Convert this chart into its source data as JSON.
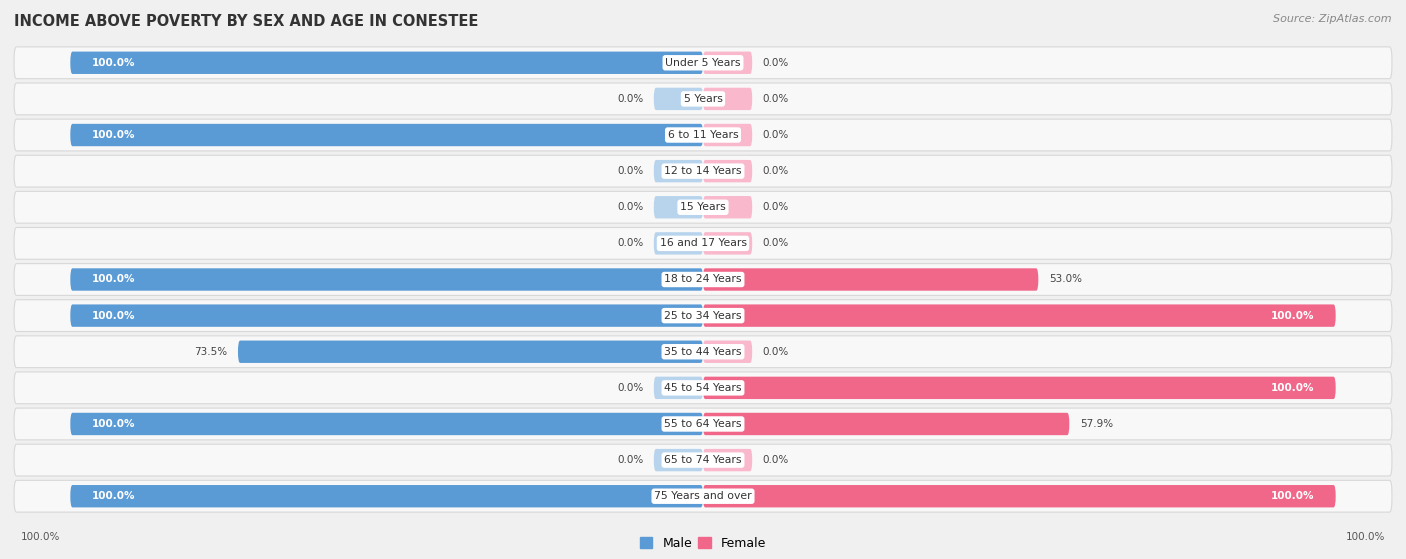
{
  "title": "INCOME ABOVE POVERTY BY SEX AND AGE IN CONESTEE",
  "source": "Source: ZipAtlas.com",
  "categories": [
    "Under 5 Years",
    "5 Years",
    "6 to 11 Years",
    "12 to 14 Years",
    "15 Years",
    "16 and 17 Years",
    "18 to 24 Years",
    "25 to 34 Years",
    "35 to 44 Years",
    "45 to 54 Years",
    "55 to 64 Years",
    "65 to 74 Years",
    "75 Years and over"
  ],
  "male": [
    100.0,
    0.0,
    100.0,
    0.0,
    0.0,
    0.0,
    100.0,
    100.0,
    73.5,
    0.0,
    100.0,
    0.0,
    100.0
  ],
  "female": [
    0.0,
    0.0,
    0.0,
    0.0,
    0.0,
    0.0,
    53.0,
    100.0,
    0.0,
    100.0,
    57.9,
    0.0,
    100.0
  ],
  "male_color": "#5b9bd5",
  "female_color": "#f0678a",
  "male_color_light": "#b8d4ed",
  "female_color_light": "#f9b8cb",
  "bg_color": "#f0f0f0",
  "row_bg": "#f8f8f8",
  "row_border": "#d8d8d8",
  "bar_height": 0.62,
  "stub_size": 7.0,
  "max_val": 100.0
}
